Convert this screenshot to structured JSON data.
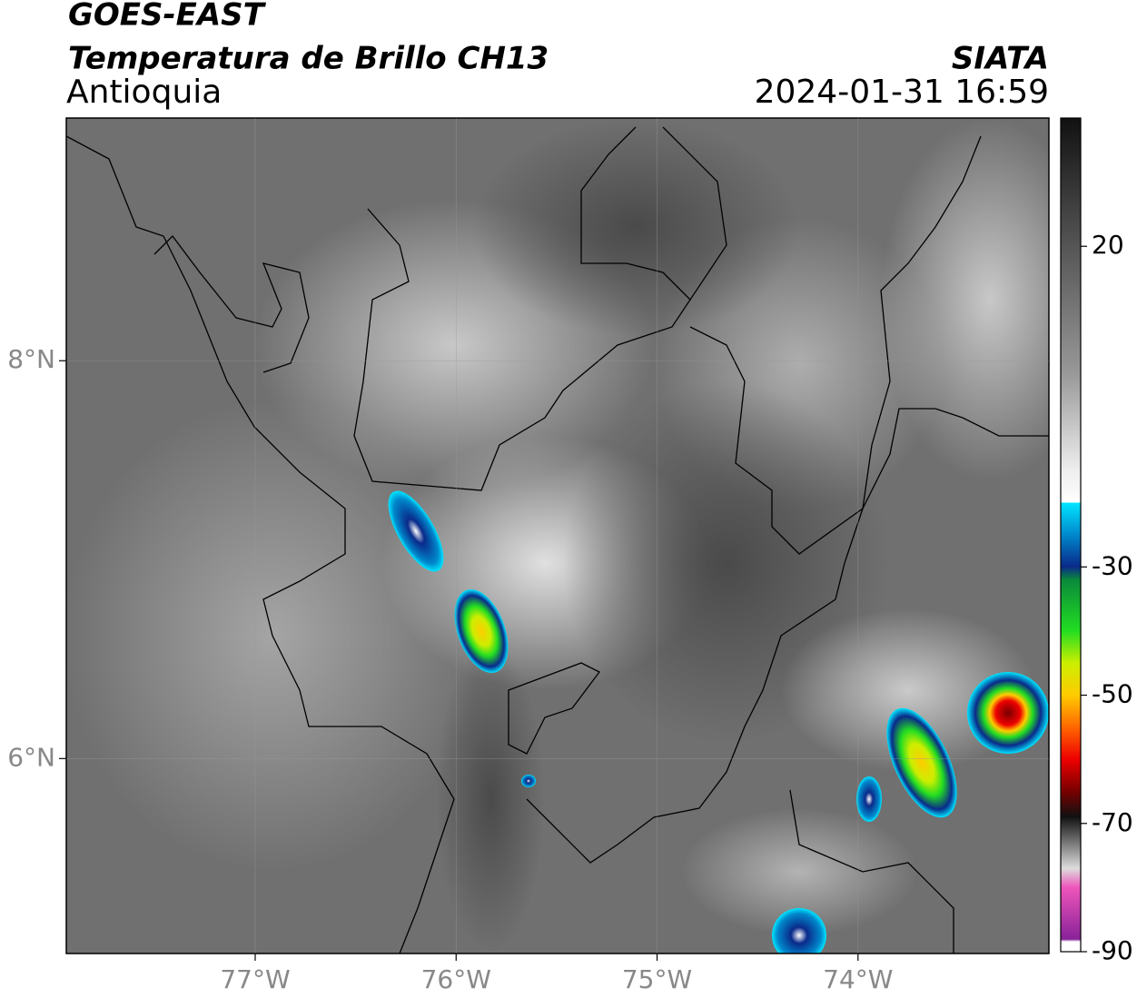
{
  "header": {
    "title": "GOES-EAST",
    "subtitle": "Temperatura de Brillo CH13",
    "region": "Antioquia",
    "source": "SIATA",
    "datetime": "2024-01-31 16:59"
  },
  "map": {
    "xlim": [
      -77.94,
      -73.05
    ],
    "ylim": [
      5.02,
      9.22
    ],
    "xticks": [
      {
        "value": -77,
        "label": "77°W"
      },
      {
        "value": -76,
        "label": "76°W"
      },
      {
        "value": -75,
        "label": "75°W"
      },
      {
        "value": -74,
        "label": "74°W"
      }
    ],
    "yticks": [
      {
        "value": 8,
        "label": "8°N"
      },
      {
        "value": 6,
        "label": "6°N"
      }
    ],
    "grid": true
  },
  "colorbar": {
    "lim": [
      -90,
      40
    ],
    "ticks": [
      20,
      -30,
      -50,
      -70,
      -90
    ]
  }
}
